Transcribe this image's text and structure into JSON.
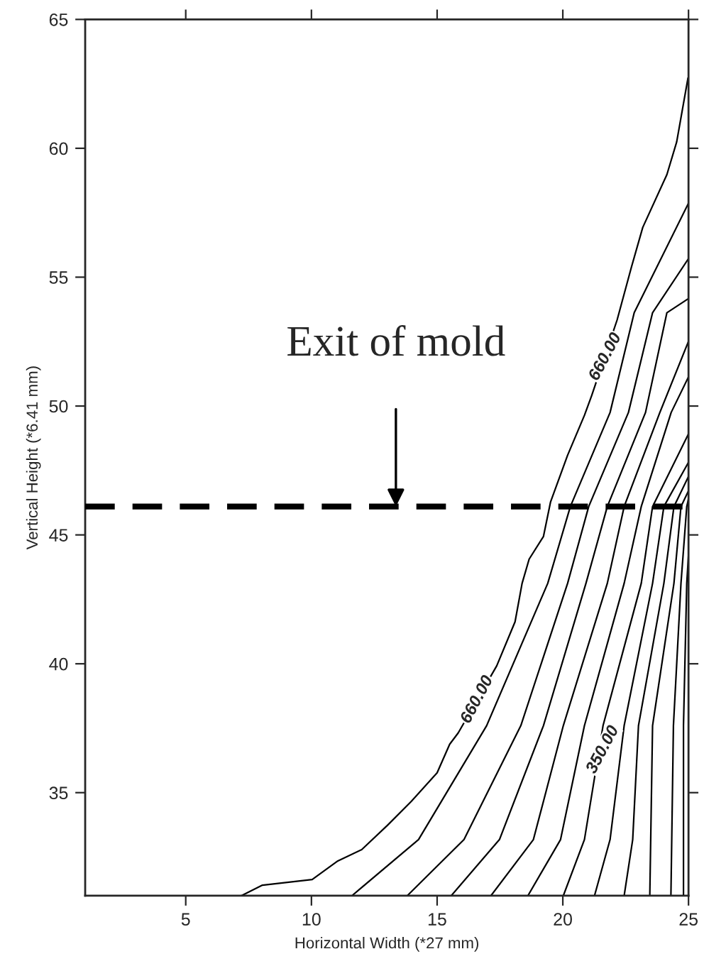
{
  "chart_data": {
    "type": "line",
    "xlabel": "Horizontal Width (*27 mm)",
    "ylabel": "Vertical Height (*6.41 mm)",
    "xlim": [
      1,
      25
    ],
    "xticks": [
      5,
      10,
      15,
      20,
      25
    ],
    "ylim": [
      31,
      65
    ],
    "yticks": [
      35,
      40,
      45,
      50,
      55,
      60,
      65
    ],
    "grid": false,
    "legend": false,
    "marker": "none",
    "line_style": "solid",
    "series": [
      {
        "color": "#000000",
        "x": [
          7.21,
          8.05,
          10.03,
          11.05,
          12.0,
          13.02,
          13.98,
          15.0,
          15.5,
          15.84,
          17.37,
          18.1,
          18.38,
          18.66,
          19.23,
          19.51,
          20.19,
          20.86,
          21.15,
          22.16,
          22.73,
          23.18,
          24.14,
          24.53,
          24.98
        ],
        "values": [
          31,
          31.41,
          31.63,
          32.35,
          32.79,
          33.73,
          34.67,
          35.77,
          36.88,
          37.32,
          39.92,
          41.63,
          43.12,
          44.06,
          44.94,
          46.27,
          48.09,
          49.64,
          50.41,
          53.34,
          55.39,
          56.93,
          58.98,
          60.25,
          62.73
        ]
      },
      {
        "color": "#000000",
        "x": [
          11.61,
          14.26,
          16.97,
          19.4,
          20.3,
          21.88,
          22.84,
          25
        ],
        "values": [
          31,
          33.18,
          37.6,
          43.12,
          46.1,
          49.75,
          53.62,
          57.87
        ]
      },
      {
        "color": "#000000",
        "x": [
          13.81,
          16.07,
          18.33,
          20.19,
          21.03,
          22.61,
          23.57,
          25
        ],
        "values": [
          31,
          33.18,
          37.6,
          43.12,
          46.1,
          49.75,
          53.62,
          55.72
        ]
      },
      {
        "color": "#000000",
        "x": [
          15.56,
          17.48,
          19.23,
          20.92,
          21.77,
          23.29,
          24.14,
          25
        ],
        "values": [
          31,
          33.18,
          37.6,
          43.12,
          46.1,
          49.75,
          53.62,
          54.17
        ]
      },
      {
        "color": "#000000",
        "x": [
          17.14,
          18.83,
          20.02,
          21.77,
          22.44,
          23.86,
          25
        ],
        "values": [
          31,
          33.18,
          37.6,
          43.12,
          46.1,
          49.75,
          52.51
        ]
      },
      {
        "color": "#000000",
        "x": [
          18.61,
          19.91,
          20.86,
          22.44,
          23.12,
          24.31,
          25
        ],
        "values": [
          31,
          33.18,
          37.6,
          43.12,
          46.1,
          49.75,
          51.13
        ]
      },
      {
        "color": "#000000",
        "x": [
          20.02,
          20.86,
          21.6,
          23.12,
          23.57,
          25
        ],
        "values": [
          31,
          33.18,
          37.6,
          43.12,
          46.1,
          48.92
        ]
      },
      {
        "color": "#000000",
        "x": [
          21.26,
          21.88,
          22.44,
          23.57,
          24.02,
          25
        ],
        "values": [
          31,
          33.18,
          37.6,
          43.12,
          46.1,
          47.82
        ]
      },
      {
        "color": "#000000",
        "x": [
          22.44,
          22.78,
          23.01,
          24.02,
          24.42,
          25
        ],
        "values": [
          31,
          33.18,
          37.6,
          43.12,
          46.1,
          47.27
        ]
      },
      {
        "color": "#000000",
        "x": [
          23.46,
          23.57,
          24.42,
          24.7,
          25
        ],
        "values": [
          31,
          37.6,
          43.12,
          46.1,
          46.71
        ]
      },
      {
        "color": "#000000",
        "x": [
          24.3,
          24.4,
          24.7,
          24.93,
          25
        ],
        "values": [
          31,
          37.6,
          43.12,
          46.1,
          46.4
        ]
      },
      {
        "color": "#000000",
        "x": [
          24.8,
          24.8,
          24.93,
          25
        ],
        "values": [
          31,
          37.6,
          43.12,
          44.23
        ]
      }
    ],
    "ref_lines": [
      {
        "axis": "y",
        "value": 46.1,
        "color": "#000000",
        "line_style": "dashed"
      }
    ],
    "annotations": [
      {
        "text": "Exit of mold",
        "x": 13.36,
        "y": 46.1
      },
      {
        "text": "660.00",
        "x": 16.6,
        "y": 38.6
      },
      {
        "text": "660.00",
        "x": 21.7,
        "y": 51.9
      },
      {
        "text": "350.00",
        "x": 21.6,
        "y": 36.66
      }
    ]
  }
}
